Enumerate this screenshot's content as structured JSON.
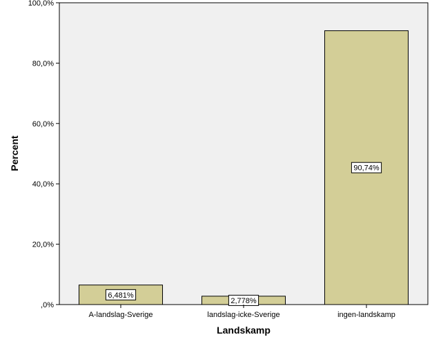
{
  "chart_data": {
    "type": "bar",
    "categories": [
      "A-landslag-Sverige",
      "landslag-icke-Sverige",
      "ingen-landskamp"
    ],
    "values": [
      6.481,
      2.778,
      90.74
    ],
    "data_labels": [
      "6,481%",
      "2,778%",
      "90,74%"
    ],
    "xlabel": "Landskamp",
    "ylabel": "Percent",
    "ylim": [
      0,
      100
    ],
    "yticks": [
      0,
      20,
      40,
      60,
      80,
      100
    ],
    "ytick_labels": [
      ",0%",
      "20,0%",
      "40,0%",
      "60,0%",
      "80,0%",
      "100,0%"
    ],
    "grid": false,
    "colors": {
      "bar_fill": "#d3ce97",
      "bar_stroke": "#000000",
      "plot_background": "#f0f0f0",
      "label_box": "#ffffff"
    }
  }
}
